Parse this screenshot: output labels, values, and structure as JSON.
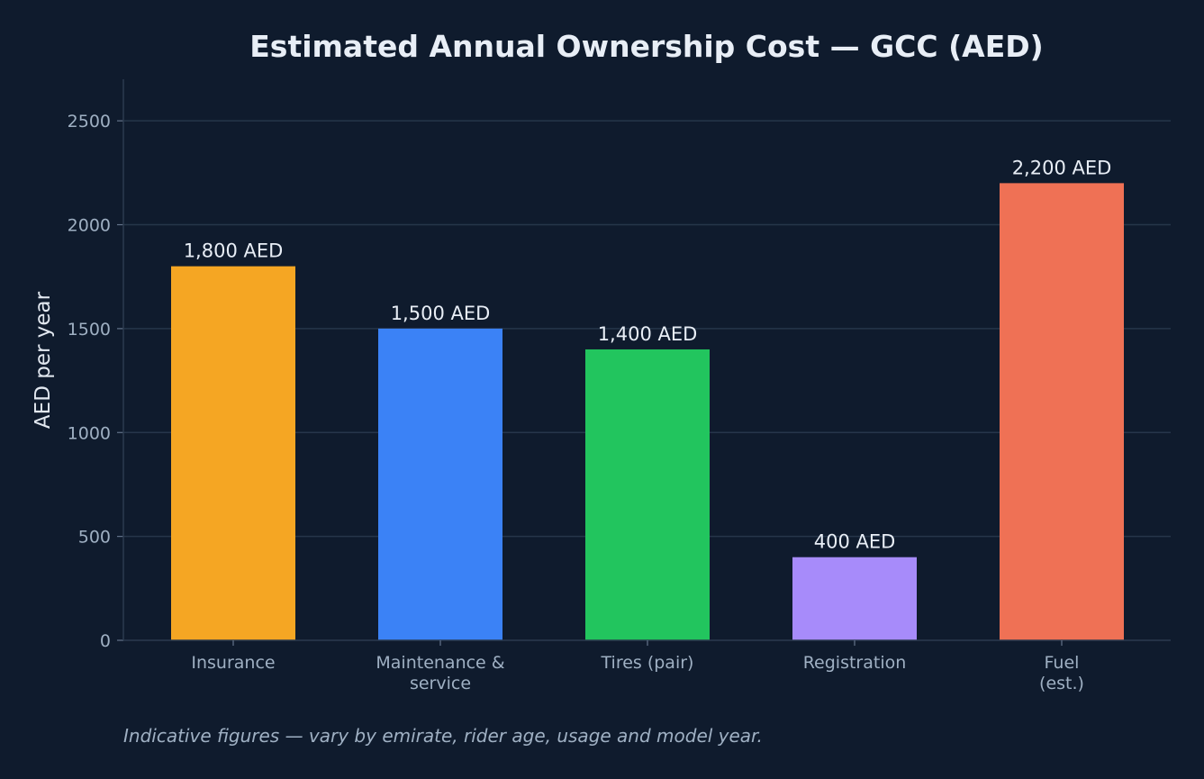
{
  "chart_data": {
    "type": "bar",
    "title": "Estimated Annual Ownership Cost — GCC (AED)",
    "ylabel": "AED per year",
    "xlabel": "",
    "categories": [
      [
        "Insurance"
      ],
      [
        "Maintenance &",
        "service"
      ],
      [
        "Tires (pair)"
      ],
      [
        "Registration"
      ],
      [
        "Fuel",
        "(est.)"
      ]
    ],
    "values": [
      1800,
      1500,
      1400,
      400,
      2200
    ],
    "value_labels": [
      "1,800 AED",
      "1,500 AED",
      "1,400 AED",
      "400 AED",
      "2,200 AED"
    ],
    "colors": [
      "#f5a623",
      "#3b82f6",
      "#22c55e",
      "#a78bfa",
      "#ef7155"
    ],
    "ylim": [
      0,
      2700
    ],
    "yticks": [
      0,
      500,
      1000,
      1500,
      2000,
      2500
    ],
    "grid": true,
    "legend": "none",
    "footnote": "Indicative figures — vary by emirate, rider age, usage and model year."
  }
}
